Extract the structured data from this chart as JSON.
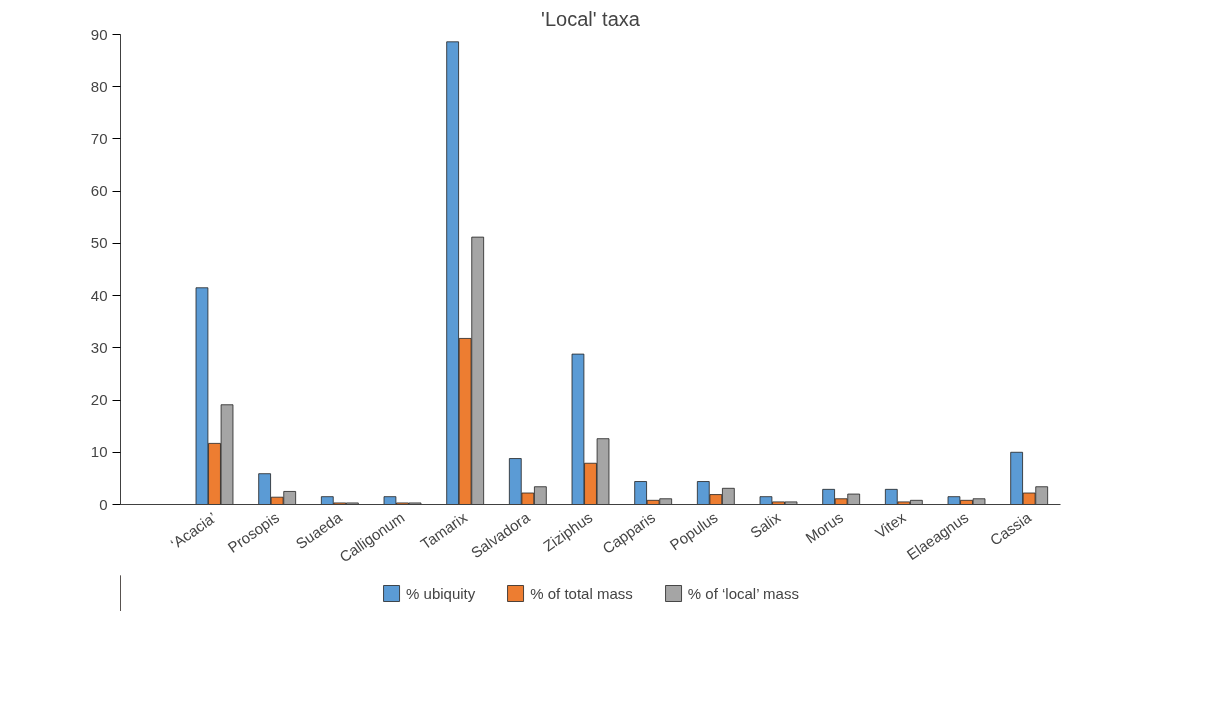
{
  "chart_data": {
    "type": "bar",
    "title": "'Local' taxa",
    "categories": [
      null,
      "‘Acacia’",
      "Prosopis",
      "Suaeda",
      "Calligonum",
      "Tamarix",
      "Salvadora",
      "Ziziphus",
      "Capparis",
      "Populus",
      "Salix",
      "Morus",
      "Vitex",
      "Elaeagnus",
      "Cassia"
    ],
    "series": [
      {
        "name": "% ubiquity",
        "color": "#5b9bd5",
        "values": [
          null,
          41.5,
          5.9,
          1.5,
          1.5,
          88.6,
          8.8,
          28.8,
          4.4,
          4.4,
          1.5,
          2.9,
          2.9,
          1.5,
          10.0
        ]
      },
      {
        "name": "% of total mass",
        "color": "#ed7d31",
        "values": [
          null,
          11.7,
          1.4,
          0.3,
          0.3,
          31.8,
          2.2,
          7.9,
          0.8,
          1.9,
          0.5,
          1.1,
          0.5,
          0.8,
          2.2
        ]
      },
      {
        "name": "% of ‘local’ mass",
        "color": "#a5a5a5",
        "values": [
          null,
          19.1,
          2.5,
          0.3,
          0.3,
          51.2,
          3.4,
          12.6,
          1.1,
          3.1,
          0.5,
          2.0,
          0.8,
          1.1,
          3.4
        ]
      }
    ],
    "ylim": [
      0,
      90
    ],
    "yticks": [
      0,
      10,
      20,
      30,
      40,
      50,
      60,
      70,
      80,
      90
    ],
    "grid": false,
    "legend": "bottom"
  }
}
